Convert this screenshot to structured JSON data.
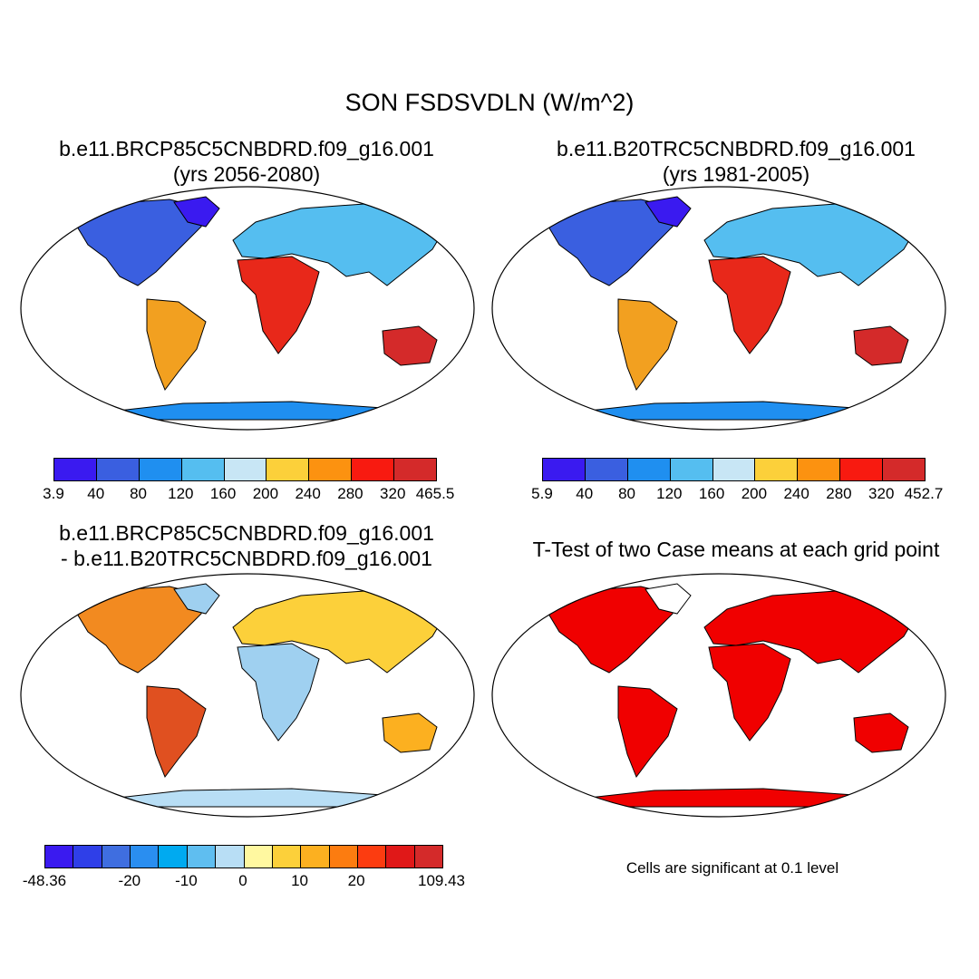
{
  "title": "SON FSDSVDLN (W/m^2)",
  "panels": [
    {
      "title_line1": "b.e11.BRCP85C5CNBDRD.f09_g16.001",
      "title_line2": "(yrs 2056-2080)"
    },
    {
      "title_line1": "b.e11.B20TRC5CNBDRD.f09_g16.001",
      "title_line2": "(yrs 1981-2005)"
    },
    {
      "title_line1": "b.e11.BRCP85C5CNBDRD.f09_g16.001",
      "title_line2": "- b.e11.B20TRC5CNBDRD.f09_g16.001"
    },
    {
      "title_line1": "T-Test of two Case means at each grid point"
    }
  ],
  "colorbars": [
    {
      "labels": [
        "3.9",
        "40",
        "80",
        "120",
        "160",
        "200",
        "240",
        "280",
        "320",
        "465.5"
      ],
      "colors": [
        "#3a1af0",
        "#3a5fe0",
        "#1f8ff0",
        "#55bef0",
        "#c8e6f5",
        "#fcd03a",
        "#fc9210",
        "#f81a10",
        "#d42a2a"
      ]
    },
    {
      "labels": [
        "5.9",
        "40",
        "80",
        "120",
        "160",
        "200",
        "240",
        "280",
        "320",
        "452.7"
      ],
      "colors": [
        "#3a1af0",
        "#3a5fe0",
        "#1f8ff0",
        "#55bef0",
        "#c8e6f5",
        "#fcd03a",
        "#fc9210",
        "#f81a10",
        "#d42a2a"
      ]
    },
    {
      "labels": [
        "-48.36",
        "-20",
        "-10",
        "0",
        "10",
        "20",
        "109.43"
      ],
      "colors": [
        "#3a1af0",
        "#2f3fe8",
        "#3f6ee0",
        "#2a8ef0",
        "#00aaf0",
        "#5fbef0",
        "#b8def5",
        "#fff8a0",
        "#fcd03a",
        "#fcb020",
        "#fc7c10",
        "#fc3c10",
        "#e01818",
        "#d42a2a"
      ]
    }
  ],
  "note": "Cells are significant at 0.1 level",
  "colors": {
    "land_mean": "#f2a020",
    "land_cold": "#3a5fe0",
    "land_hot": "#e8281a",
    "sig": "#f00000",
    "diff_pos": "#f28a20",
    "diff_neg": "#9fd0f0"
  }
}
